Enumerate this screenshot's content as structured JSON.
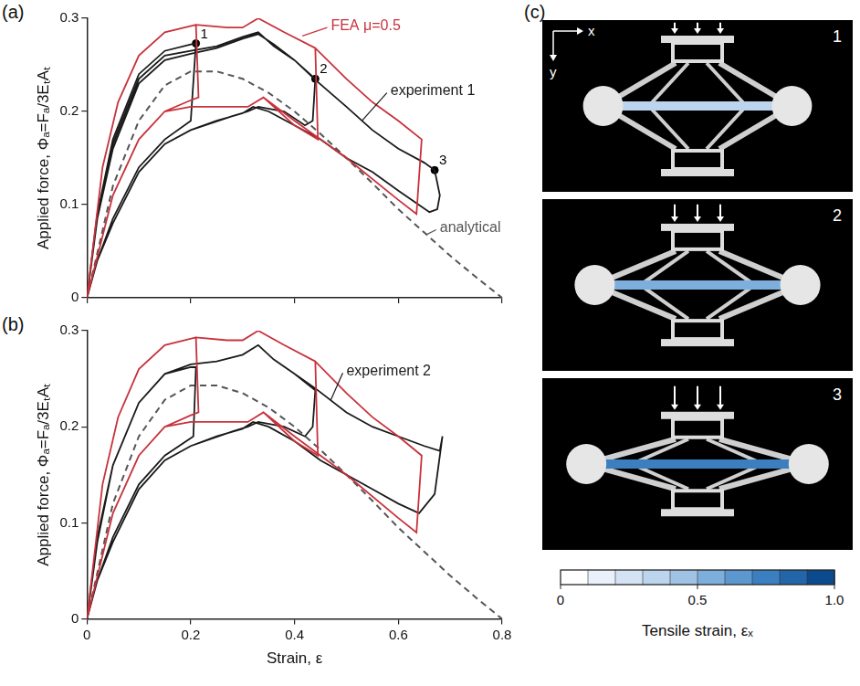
{
  "chart_data": [
    {
      "panel": "(a)",
      "type": "line",
      "y_label": "Applied force, Φₐ=Fₐ/3EₜAₜ",
      "xlim": [
        0,
        0.8
      ],
      "xticks": [
        0,
        0.2,
        0.4,
        0.6,
        0.8
      ],
      "ylim": [
        0,
        0.3
      ],
      "yticks": [
        0,
        0.1,
        0.2,
        0.3
      ],
      "grid": false,
      "tick_labels": "y",
      "series": [
        {
          "name": "FEA μ=0.5",
          "color": "#c8323c",
          "line_style": "solid",
          "x": [
            0,
            0.03,
            0.06,
            0.1,
            0.15,
            0.21,
            0.215,
            0.2,
            0.15,
            0.1,
            0.05,
            0,
            0.03,
            0.06,
            0.1,
            0.15,
            0.21,
            0.27,
            0.3,
            0.33,
            0.38,
            0.44,
            0.445,
            0.4,
            0.34,
            0.31,
            0.25,
            0.2,
            0.15,
            0.1,
            0.05,
            0,
            0.03,
            0.06,
            0.1,
            0.15,
            0.21,
            0.27,
            0.3,
            0.33,
            0.38,
            0.44,
            0.5,
            0.55,
            0.6,
            0.645,
            0.635,
            0.6,
            0.5,
            0.4,
            0.34,
            0.31,
            0.25,
            0.2,
            0.15,
            0.1,
            0.05,
            0
          ],
          "values": [
            0,
            0.14,
            0.21,
            0.26,
            0.285,
            0.293,
            0.215,
            0.212,
            0.2,
            0.17,
            0.11,
            0,
            0.14,
            0.21,
            0.26,
            0.285,
            0.293,
            0.29,
            0.29,
            0.3,
            0.285,
            0.268,
            0.17,
            0.185,
            0.215,
            0.205,
            0.205,
            0.205,
            0.2,
            0.17,
            0.11,
            0,
            0.14,
            0.21,
            0.26,
            0.285,
            0.293,
            0.29,
            0.29,
            0.3,
            0.285,
            0.268,
            0.235,
            0.21,
            0.19,
            0.17,
            0.09,
            0.105,
            0.15,
            0.19,
            0.215,
            0.205,
            0.205,
            0.205,
            0.2,
            0.17,
            0.11,
            0
          ]
        },
        {
          "name": "experiment 1",
          "color": "#1a1a1a",
          "line_style": "solid",
          "x": [
            0,
            0.02,
            0.05,
            0.1,
            0.15,
            0.2,
            0.21,
            0.2,
            0.15,
            0.1,
            0.05,
            0.02,
            0,
            0.02,
            0.05,
            0.1,
            0.15,
            0.2,
            0.25,
            0.3,
            0.33,
            0.36,
            0.4,
            0.44,
            0.435,
            0.42,
            0.38,
            0.33,
            0.31,
            0.28,
            0.2,
            0.15,
            0.1,
            0.05,
            0.02,
            0,
            0.02,
            0.05,
            0.1,
            0.15,
            0.2,
            0.25,
            0.3,
            0.33,
            0.36,
            0.4,
            0.44,
            0.5,
            0.55,
            0.6,
            0.65,
            0.67,
            0.68,
            0.675,
            0.66,
            0.6,
            0.55,
            0.5,
            0.45,
            0.4,
            0.35,
            0.32,
            0.3,
            0.25,
            0.2,
            0.15,
            0.1,
            0.05,
            0.02,
            0
          ],
          "values": [
            0,
            0.09,
            0.17,
            0.24,
            0.265,
            0.272,
            0.273,
            0.19,
            0.17,
            0.14,
            0.085,
            0.04,
            0,
            0.09,
            0.165,
            0.235,
            0.26,
            0.265,
            0.27,
            0.28,
            0.285,
            0.27,
            0.255,
            0.235,
            0.19,
            0.185,
            0.2,
            0.205,
            0.2,
            0.195,
            0.18,
            0.165,
            0.135,
            0.08,
            0.04,
            0,
            0.085,
            0.16,
            0.23,
            0.255,
            0.262,
            0.268,
            0.278,
            0.283,
            0.272,
            0.255,
            0.234,
            0.205,
            0.18,
            0.16,
            0.145,
            0.137,
            0.11,
            0.095,
            0.092,
            0.115,
            0.135,
            0.15,
            0.17,
            0.185,
            0.2,
            0.205,
            0.198,
            0.19,
            0.18,
            0.165,
            0.135,
            0.08,
            0.04,
            0
          ]
        },
        {
          "name": "analytical",
          "color": "#555555",
          "line_style": "dashed",
          "x": [
            0,
            0.05,
            0.1,
            0.15,
            0.2,
            0.25,
            0.3,
            0.35,
            0.4,
            0.45,
            0.5,
            0.55,
            0.6,
            0.65,
            0.7,
            0.75,
            0.8
          ],
          "values": [
            0,
            0.12,
            0.19,
            0.228,
            0.243,
            0.243,
            0.235,
            0.22,
            0.2,
            0.176,
            0.15,
            0.123,
            0.095,
            0.07,
            0.045,
            0.022,
            0
          ]
        }
      ],
      "points": [
        {
          "label": "1",
          "x": 0.21,
          "y": 0.273
        },
        {
          "label": "2",
          "x": 0.44,
          "y": 0.235
        },
        {
          "label": "3",
          "x": 0.67,
          "y": 0.137
        }
      ]
    },
    {
      "panel": "(b)",
      "type": "line",
      "x_label": "Strain, ε",
      "y_label": "Applied force, Φₐ=Fₐ/3EₜAₜ",
      "xlim": [
        0,
        0.8
      ],
      "xticks": [
        0,
        0.2,
        0.4,
        0.6,
        0.8
      ],
      "ylim": [
        0,
        0.3
      ],
      "yticks": [
        0,
        0.1,
        0.2,
        0.3
      ],
      "grid": false,
      "series": [
        {
          "color": "#c8323c",
          "line_style": "solid",
          "x": [
            0,
            0.03,
            0.06,
            0.1,
            0.15,
            0.21,
            0.215,
            0.2,
            0.15,
            0.1,
            0.05,
            0,
            0.03,
            0.06,
            0.1,
            0.15,
            0.21,
            0.27,
            0.3,
            0.33,
            0.38,
            0.44,
            0.445,
            0.4,
            0.34,
            0.31,
            0.25,
            0.2,
            0.15,
            0.1,
            0.05,
            0,
            0.03,
            0.06,
            0.1,
            0.15,
            0.21,
            0.27,
            0.3,
            0.33,
            0.38,
            0.44,
            0.5,
            0.55,
            0.6,
            0.645,
            0.635,
            0.6,
            0.5,
            0.4,
            0.34,
            0.31,
            0.25,
            0.2,
            0.15,
            0.1,
            0.05,
            0
          ],
          "values": [
            0,
            0.14,
            0.21,
            0.26,
            0.285,
            0.293,
            0.215,
            0.212,
            0.2,
            0.17,
            0.11,
            0,
            0.14,
            0.21,
            0.26,
            0.285,
            0.293,
            0.29,
            0.29,
            0.3,
            0.285,
            0.268,
            0.17,
            0.185,
            0.215,
            0.205,
            0.205,
            0.205,
            0.2,
            0.17,
            0.11,
            0,
            0.14,
            0.21,
            0.26,
            0.285,
            0.293,
            0.29,
            0.29,
            0.3,
            0.285,
            0.268,
            0.235,
            0.21,
            0.19,
            0.17,
            0.09,
            0.105,
            0.15,
            0.19,
            0.215,
            0.205,
            0.205,
            0.205,
            0.2,
            0.17,
            0.11,
            0
          ]
        },
        {
          "name": "experiment 2",
          "color": "#1a1a1a",
          "line_style": "solid",
          "x": [
            0,
            0.02,
            0.05,
            0.1,
            0.15,
            0.2,
            0.21,
            0.205,
            0.15,
            0.1,
            0.05,
            0.02,
            0,
            0.02,
            0.05,
            0.1,
            0.15,
            0.2,
            0.25,
            0.3,
            0.33,
            0.36,
            0.4,
            0.44,
            0.435,
            0.42,
            0.38,
            0.33,
            0.31,
            0.28,
            0.2,
            0.15,
            0.1,
            0.05,
            0.02,
            0,
            0.02,
            0.05,
            0.1,
            0.15,
            0.2,
            0.25,
            0.3,
            0.33,
            0.36,
            0.4,
            0.44,
            0.5,
            0.55,
            0.6,
            0.65,
            0.68,
            0.685,
            0.68,
            0.67,
            0.64,
            0.6,
            0.55,
            0.5,
            0.45,
            0.4,
            0.35,
            0.32,
            0.3,
            0.25,
            0.2,
            0.15,
            0.1,
            0.05,
            0.02,
            0
          ],
          "values": [
            0,
            0.08,
            0.16,
            0.225,
            0.255,
            0.262,
            0.262,
            0.19,
            0.17,
            0.14,
            0.085,
            0.04,
            0,
            0.085,
            0.16,
            0.225,
            0.255,
            0.265,
            0.268,
            0.275,
            0.285,
            0.27,
            0.255,
            0.238,
            0.2,
            0.19,
            0.2,
            0.205,
            0.2,
            0.195,
            0.18,
            0.165,
            0.135,
            0.08,
            0.04,
            0,
            0.085,
            0.16,
            0.225,
            0.255,
            0.265,
            0.268,
            0.275,
            0.285,
            0.27,
            0.255,
            0.24,
            0.215,
            0.2,
            0.19,
            0.18,
            0.175,
            0.19,
            0.17,
            0.13,
            0.11,
            0.12,
            0.135,
            0.15,
            0.165,
            0.185,
            0.2,
            0.205,
            0.198,
            0.19,
            0.18,
            0.165,
            0.135,
            0.08,
            0.04,
            0
          ]
        },
        {
          "color": "#555555",
          "line_style": "dashed",
          "x": [
            0,
            0.05,
            0.1,
            0.15,
            0.2,
            0.25,
            0.3,
            0.35,
            0.4,
            0.45,
            0.5,
            0.55,
            0.6,
            0.65,
            0.7,
            0.75,
            0.8
          ],
          "values": [
            0,
            0.12,
            0.19,
            0.228,
            0.243,
            0.243,
            0.235,
            0.22,
            0.2,
            0.176,
            0.15,
            0.123,
            0.095,
            0.07,
            0.045,
            0.022,
            0
          ]
        }
      ]
    }
  ],
  "panel_c": {
    "panel": "(c)",
    "axis_labels": {
      "x": "x",
      "y": "y"
    },
    "frames": [
      {
        "label": "1"
      },
      {
        "label": "2"
      },
      {
        "label": "3"
      }
    ],
    "colorbar": {
      "title": "Tensile strain, εₓ",
      "range": [
        0,
        1
      ],
      "ticks": [
        0,
        0.5,
        {
          "value": 1,
          "label": "1.0"
        }
      ],
      "colors": [
        "#ffffff",
        "#eaf1fa",
        "#d3e3f4",
        "#bcd4ee",
        "#9fc2e5",
        "#7eaedb",
        "#5c97cf",
        "#3b7fc0",
        "#2265a8",
        "#0b4a8c"
      ]
    }
  }
}
